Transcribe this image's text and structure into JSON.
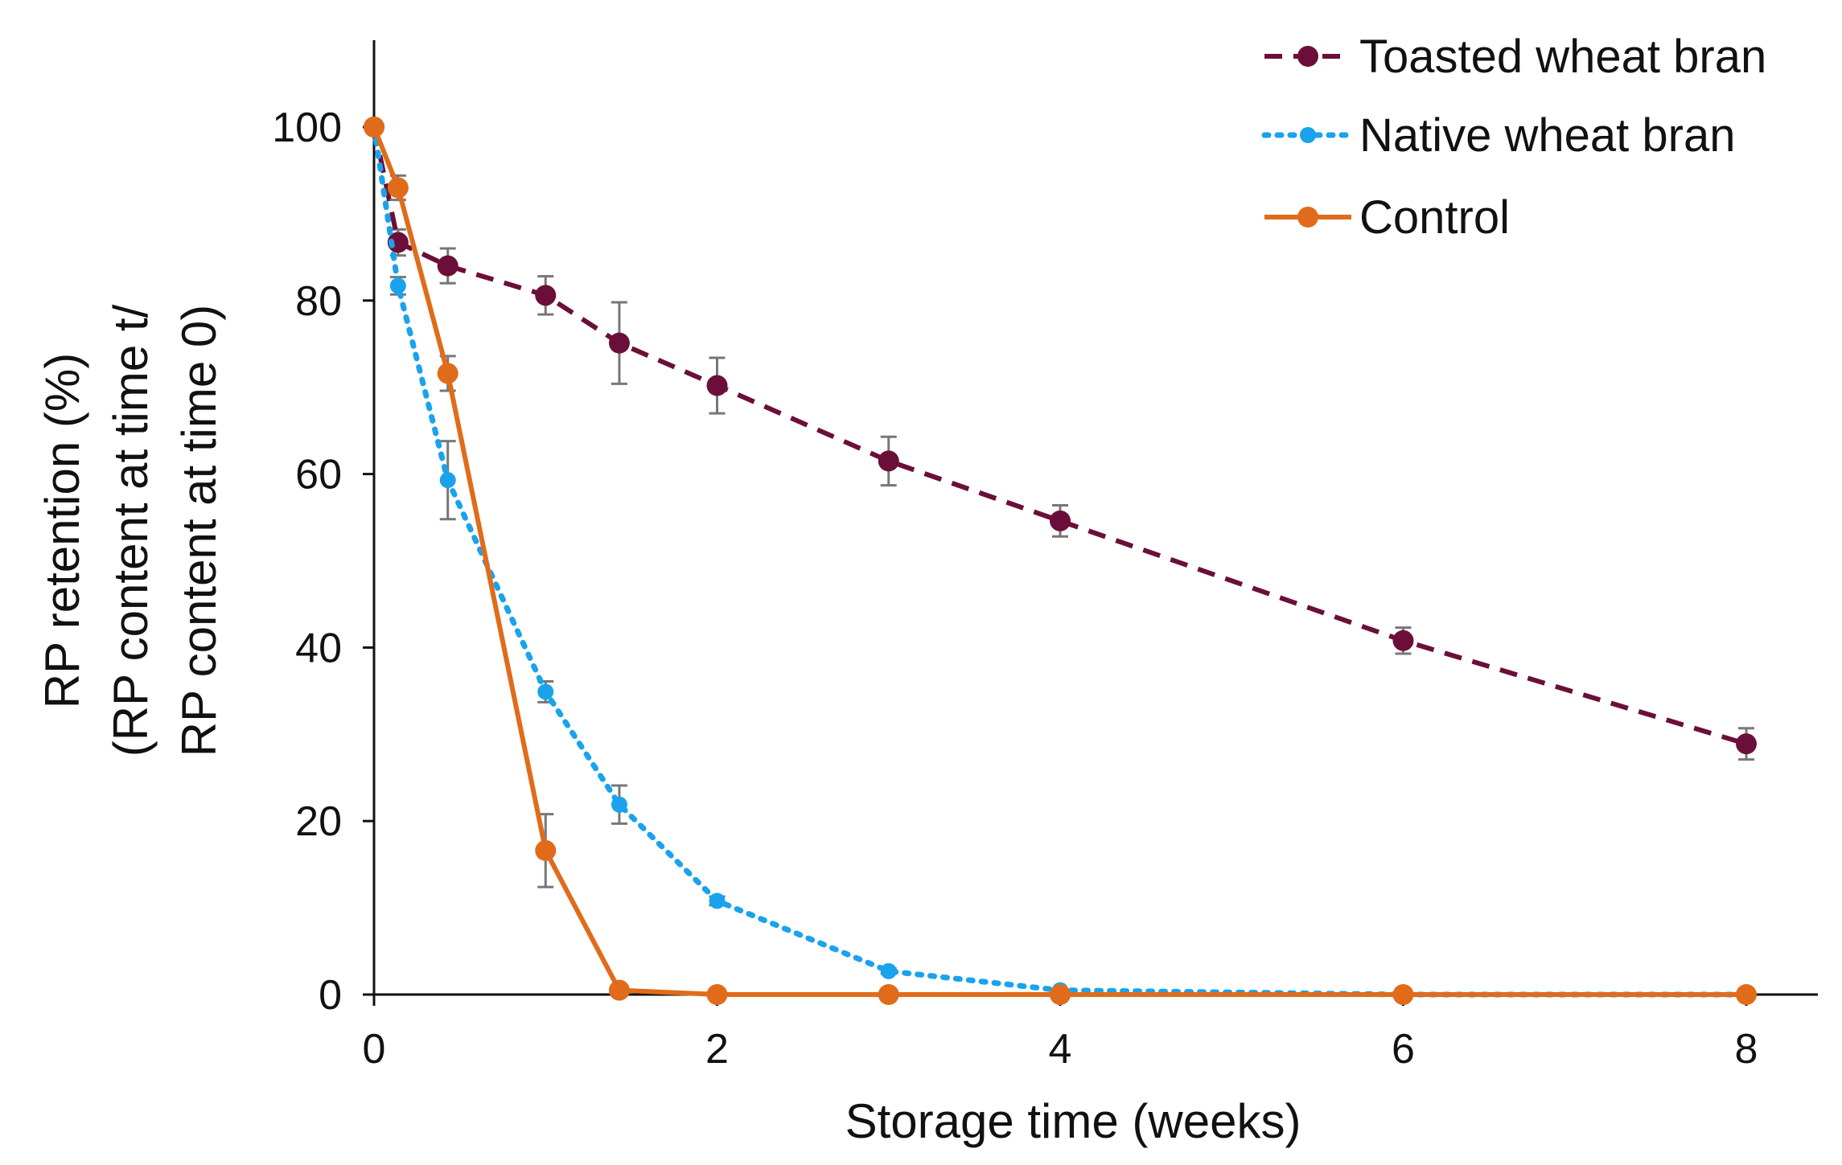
{
  "chart_data": {
    "type": "line",
    "title": "",
    "xlabel": "Storage time (weeks)",
    "ylabel_lines": [
      "RP retention (%)",
      "(RP content at time t/",
      "RP content at time 0)"
    ],
    "xlim": [
      0,
      8.5
    ],
    "ylim": [
      0,
      110
    ],
    "xticks": [
      0,
      2,
      4,
      6,
      8
    ],
    "yticks": [
      0,
      20,
      40,
      60,
      80,
      100
    ],
    "legend_position": "top-right",
    "series": [
      {
        "name": "Toasted wheat bran",
        "color": "#6b0f3a",
        "style": "dashed",
        "x": [
          0,
          0.14,
          0.43,
          1,
          1.43,
          2,
          3,
          4,
          6,
          8
        ],
        "y": [
          100,
          86.7,
          84,
          80.6,
          75.1,
          70.2,
          61.5,
          54.6,
          40.8,
          28.9
        ],
        "err": [
          0,
          1.5,
          2,
          2.2,
          4.7,
          3.2,
          2.8,
          1.8,
          1.5,
          1.8
        ]
      },
      {
        "name": "Native wheat bran",
        "color": "#1aa3ec",
        "style": "dotted",
        "x": [
          0,
          0.14,
          0.43,
          1,
          1.43,
          2,
          3,
          4,
          6,
          8
        ],
        "y": [
          100,
          81.7,
          59.3,
          34.9,
          21.9,
          10.8,
          2.7,
          0.5,
          0,
          0
        ],
        "err": [
          0,
          1,
          4.5,
          1.2,
          2.2,
          0.5,
          0.3,
          0,
          0,
          0
        ]
      },
      {
        "name": "Control",
        "color": "#e06c1b",
        "style": "solid",
        "x": [
          0,
          0.14,
          0.43,
          1,
          1.43,
          2,
          3,
          4,
          6,
          8
        ],
        "y": [
          100,
          93,
          71.6,
          16.6,
          0.5,
          0,
          0,
          0,
          0,
          0
        ],
        "err": [
          0,
          1.4,
          2,
          4.2,
          0,
          0,
          0,
          0,
          0,
          0
        ]
      }
    ]
  }
}
